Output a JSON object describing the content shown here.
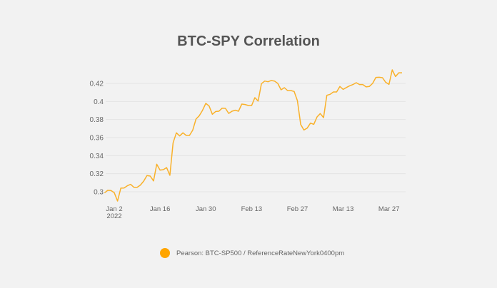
{
  "chart_data": {
    "type": "line",
    "title": "BTC-SPY Correlation",
    "xlabel": "",
    "ylabel": "",
    "ylim": [
      0.29,
      0.435
    ],
    "yticks": [
      0.3,
      0.32,
      0.34,
      0.36,
      0.38,
      0.4,
      0.42
    ],
    "ytick_labels": [
      "0.3",
      "0.32",
      "0.34",
      "0.36",
      "0.38",
      "0.4",
      "0.42"
    ],
    "xticks": [
      {
        "date": "2022-01-02",
        "label": "Jan 2",
        "sublabel": "2022"
      },
      {
        "date": "2022-01-16",
        "label": "Jan 16"
      },
      {
        "date": "2022-01-30",
        "label": "Jan 30"
      },
      {
        "date": "2022-02-13",
        "label": "Feb 13"
      },
      {
        "date": "2022-02-27",
        "label": "Feb 27"
      },
      {
        "date": "2022-03-13",
        "label": "Mar 13"
      },
      {
        "date": "2022-03-27",
        "label": "Mar 27"
      }
    ],
    "grid": true,
    "legend_placement": "bottom",
    "series": [
      {
        "name": "Pearson: BTC-SP500 / ReferenceRateNewYork0400pm",
        "color": "#f9b12a",
        "x": [
          "2021-12-30",
          "2021-12-31",
          "2022-01-01",
          "2022-01-02",
          "2022-01-03",
          "2022-01-04",
          "2022-01-05",
          "2022-01-06",
          "2022-01-07",
          "2022-01-08",
          "2022-01-09",
          "2022-01-10",
          "2022-01-11",
          "2022-01-12",
          "2022-01-13",
          "2022-01-14",
          "2022-01-15",
          "2022-01-16",
          "2022-01-17",
          "2022-01-18",
          "2022-01-19",
          "2022-01-20",
          "2022-01-21",
          "2022-01-22",
          "2022-01-23",
          "2022-01-24",
          "2022-01-25",
          "2022-01-26",
          "2022-01-27",
          "2022-01-28",
          "2022-01-29",
          "2022-01-30",
          "2022-01-31",
          "2022-02-01",
          "2022-02-02",
          "2022-02-03",
          "2022-02-04",
          "2022-02-05",
          "2022-02-06",
          "2022-02-07",
          "2022-02-08",
          "2022-02-09",
          "2022-02-10",
          "2022-02-11",
          "2022-02-12",
          "2022-02-13",
          "2022-02-14",
          "2022-02-15",
          "2022-02-16",
          "2022-02-17",
          "2022-02-18",
          "2022-02-19",
          "2022-02-20",
          "2022-02-21",
          "2022-02-22",
          "2022-02-23",
          "2022-02-24",
          "2022-02-25",
          "2022-02-26",
          "2022-02-27",
          "2022-02-28",
          "2022-03-01",
          "2022-03-02",
          "2022-03-03",
          "2022-03-04",
          "2022-03-05",
          "2022-03-06",
          "2022-03-07",
          "2022-03-08",
          "2022-03-09",
          "2022-03-10",
          "2022-03-11",
          "2022-03-12",
          "2022-03-13",
          "2022-03-14",
          "2022-03-15",
          "2022-03-16",
          "2022-03-17",
          "2022-03-18",
          "2022-03-19",
          "2022-03-20",
          "2022-03-21",
          "2022-03-22",
          "2022-03-23",
          "2022-03-24",
          "2022-03-25",
          "2022-03-26",
          "2022-03-27",
          "2022-03-28",
          "2022-03-29",
          "2022-03-30",
          "2022-03-31"
        ],
        "values": [
          0.2987,
          0.3016,
          0.3014,
          0.299,
          0.2897,
          0.304,
          0.3042,
          0.3066,
          0.3082,
          0.305,
          0.305,
          0.3074,
          0.3118,
          0.318,
          0.3174,
          0.312,
          0.3305,
          0.324,
          0.3245,
          0.3268,
          0.3182,
          0.3542,
          0.3653,
          0.3618,
          0.3653,
          0.3624,
          0.3624,
          0.3682,
          0.3805,
          0.3842,
          0.3903,
          0.3979,
          0.395,
          0.3858,
          0.3889,
          0.3892,
          0.3926,
          0.3924,
          0.3868,
          0.3892,
          0.3903,
          0.3892,
          0.3971,
          0.3966,
          0.3955,
          0.3955,
          0.4042,
          0.4005,
          0.4197,
          0.4226,
          0.4218,
          0.4232,
          0.4226,
          0.42,
          0.4129,
          0.4153,
          0.4121,
          0.4121,
          0.4111,
          0.4008,
          0.3745,
          0.3684,
          0.3705,
          0.376,
          0.3747,
          0.3829,
          0.3866,
          0.3821,
          0.4068,
          0.4079,
          0.4105,
          0.4105,
          0.4166,
          0.4134,
          0.4155,
          0.4174,
          0.4187,
          0.4208,
          0.4187,
          0.4187,
          0.4161,
          0.4166,
          0.42,
          0.4266,
          0.4268,
          0.4263,
          0.4213,
          0.4189,
          0.435,
          0.4276,
          0.4318,
          0.4318
        ]
      }
    ]
  }
}
